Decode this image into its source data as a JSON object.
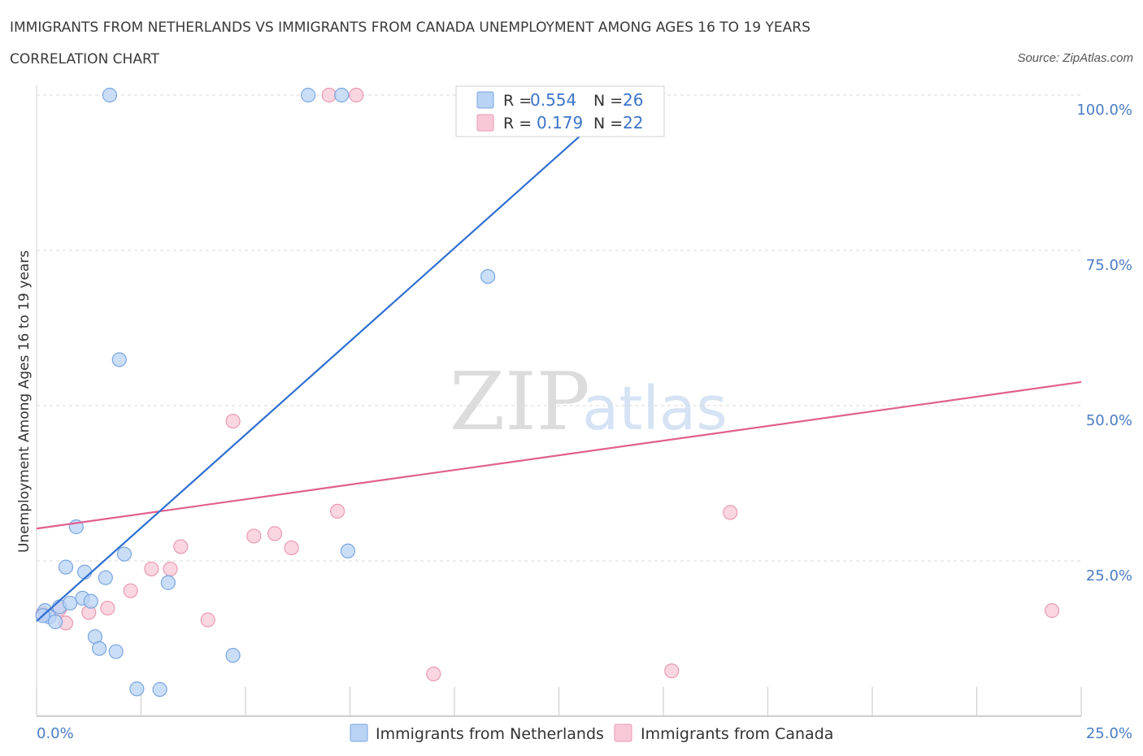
{
  "title_line1": "IMMIGRANTS FROM NETHERLANDS VS IMMIGRANTS FROM CANADA UNEMPLOYMENT AMONG AGES 16 TO 19 YEARS",
  "title_line2": "CORRELATION CHART",
  "source": "Source: ZipAtlas.com",
  "watermark": {
    "zip": "ZIP",
    "atlas": "atlas"
  },
  "stats": [
    {
      "r_label": "R =",
      "r_value": "0.554",
      "n_label": "N =",
      "n_value": "26"
    },
    {
      "r_label": "R =",
      "r_value": "0.179",
      "n_label": "N =",
      "n_value": "22"
    }
  ],
  "legend": [
    "Immigrants from Netherlands",
    "Immigrants from Canada"
  ],
  "colors": {
    "netherlands_fill": "#b9d3f5",
    "netherlands_stroke": "#7aa6df",
    "netherlands_line": "#2f6fd0",
    "canada_fill": "#f8c8d7",
    "canada_stroke": "#e99ab3",
    "canada_line": "#e0608e",
    "grid": "#d9d9d9",
    "tick_text": "#4b7cc4"
  },
  "chart_data": {
    "type": "scatter",
    "title": "IMMIGRANTS FROM NETHERLANDS VS IMMIGRANTS FROM CANADA UNEMPLOYMENT AMONG AGES 16 TO 19 YEARS",
    "subtitle": "CORRELATION CHART",
    "xlabel": "",
    "ylabel": "Unemployment Among Ages 16 to 19 years",
    "xlim": [
      0,
      25
    ],
    "ylim": [
      0,
      100
    ],
    "x_tick_labels": [
      "0.0%",
      "25.0%"
    ],
    "y_tick_labels": [
      "25.0%",
      "50.0%",
      "75.0%",
      "100.0%"
    ],
    "y_ticks": [
      25,
      50,
      75,
      100
    ],
    "grid": true,
    "legend_position": "bottom-center",
    "series": [
      {
        "name": "Immigrants from Netherlands",
        "r": 0.554,
        "n": 26,
        "trend": {
          "x": [
            0.0,
            14.1
          ],
          "y": [
            15.3,
            100.0
          ]
        },
        "points": [
          {
            "x": 0.2,
            "y": 17.0
          },
          {
            "x": 0.3,
            "y": 16.0
          },
          {
            "x": 0.45,
            "y": 15.2
          },
          {
            "x": 0.55,
            "y": 17.6
          },
          {
            "x": 0.7,
            "y": 24.0
          },
          {
            "x": 0.8,
            "y": 18.2
          },
          {
            "x": 0.95,
            "y": 30.5
          },
          {
            "x": 1.1,
            "y": 19.0
          },
          {
            "x": 1.15,
            "y": 23.2
          },
          {
            "x": 1.3,
            "y": 18.5
          },
          {
            "x": 1.4,
            "y": 12.8
          },
          {
            "x": 1.5,
            "y": 10.9
          },
          {
            "x": 1.65,
            "y": 22.3
          },
          {
            "x": 1.75,
            "y": 100.0
          },
          {
            "x": 1.9,
            "y": 10.4
          },
          {
            "x": 1.98,
            "y": 57.4
          },
          {
            "x": 2.1,
            "y": 26.1
          },
          {
            "x": 2.4,
            "y": 4.4
          },
          {
            "x": 2.95,
            "y": 4.3
          },
          {
            "x": 3.15,
            "y": 21.5
          },
          {
            "x": 4.7,
            "y": 9.8
          },
          {
            "x": 6.5,
            "y": 100.0
          },
          {
            "x": 7.3,
            "y": 100.0
          },
          {
            "x": 7.45,
            "y": 26.6
          },
          {
            "x": 10.8,
            "y": 70.8
          },
          {
            "x": 0.15,
            "y": 16.2
          }
        ]
      },
      {
        "name": "Immigrants from Canada",
        "r": 0.179,
        "n": 22,
        "trend": {
          "x": [
            0.0,
            25.0
          ],
          "y": [
            30.2,
            53.8
          ]
        },
        "points": [
          {
            "x": 0.15,
            "y": 16.5
          },
          {
            "x": 0.55,
            "y": 17.2
          },
          {
            "x": 0.7,
            "y": 15.0
          },
          {
            "x": 1.25,
            "y": 16.7
          },
          {
            "x": 1.7,
            "y": 17.4
          },
          {
            "x": 2.25,
            "y": 20.2
          },
          {
            "x": 2.75,
            "y": 23.7
          },
          {
            "x": 3.2,
            "y": 23.7
          },
          {
            "x": 3.45,
            "y": 27.3
          },
          {
            "x": 4.1,
            "y": 15.5
          },
          {
            "x": 4.7,
            "y": 47.5
          },
          {
            "x": 5.2,
            "y": 29.0
          },
          {
            "x": 5.7,
            "y": 29.4
          },
          {
            "x": 6.1,
            "y": 27.1
          },
          {
            "x": 7.0,
            "y": 100.0
          },
          {
            "x": 7.2,
            "y": 33.0
          },
          {
            "x": 7.65,
            "y": 100.0
          },
          {
            "x": 9.5,
            "y": 6.8
          },
          {
            "x": 13.0,
            "y": 100.0
          },
          {
            "x": 15.2,
            "y": 7.3
          },
          {
            "x": 16.6,
            "y": 32.8
          },
          {
            "x": 24.3,
            "y": 17.0
          }
        ]
      }
    ]
  }
}
